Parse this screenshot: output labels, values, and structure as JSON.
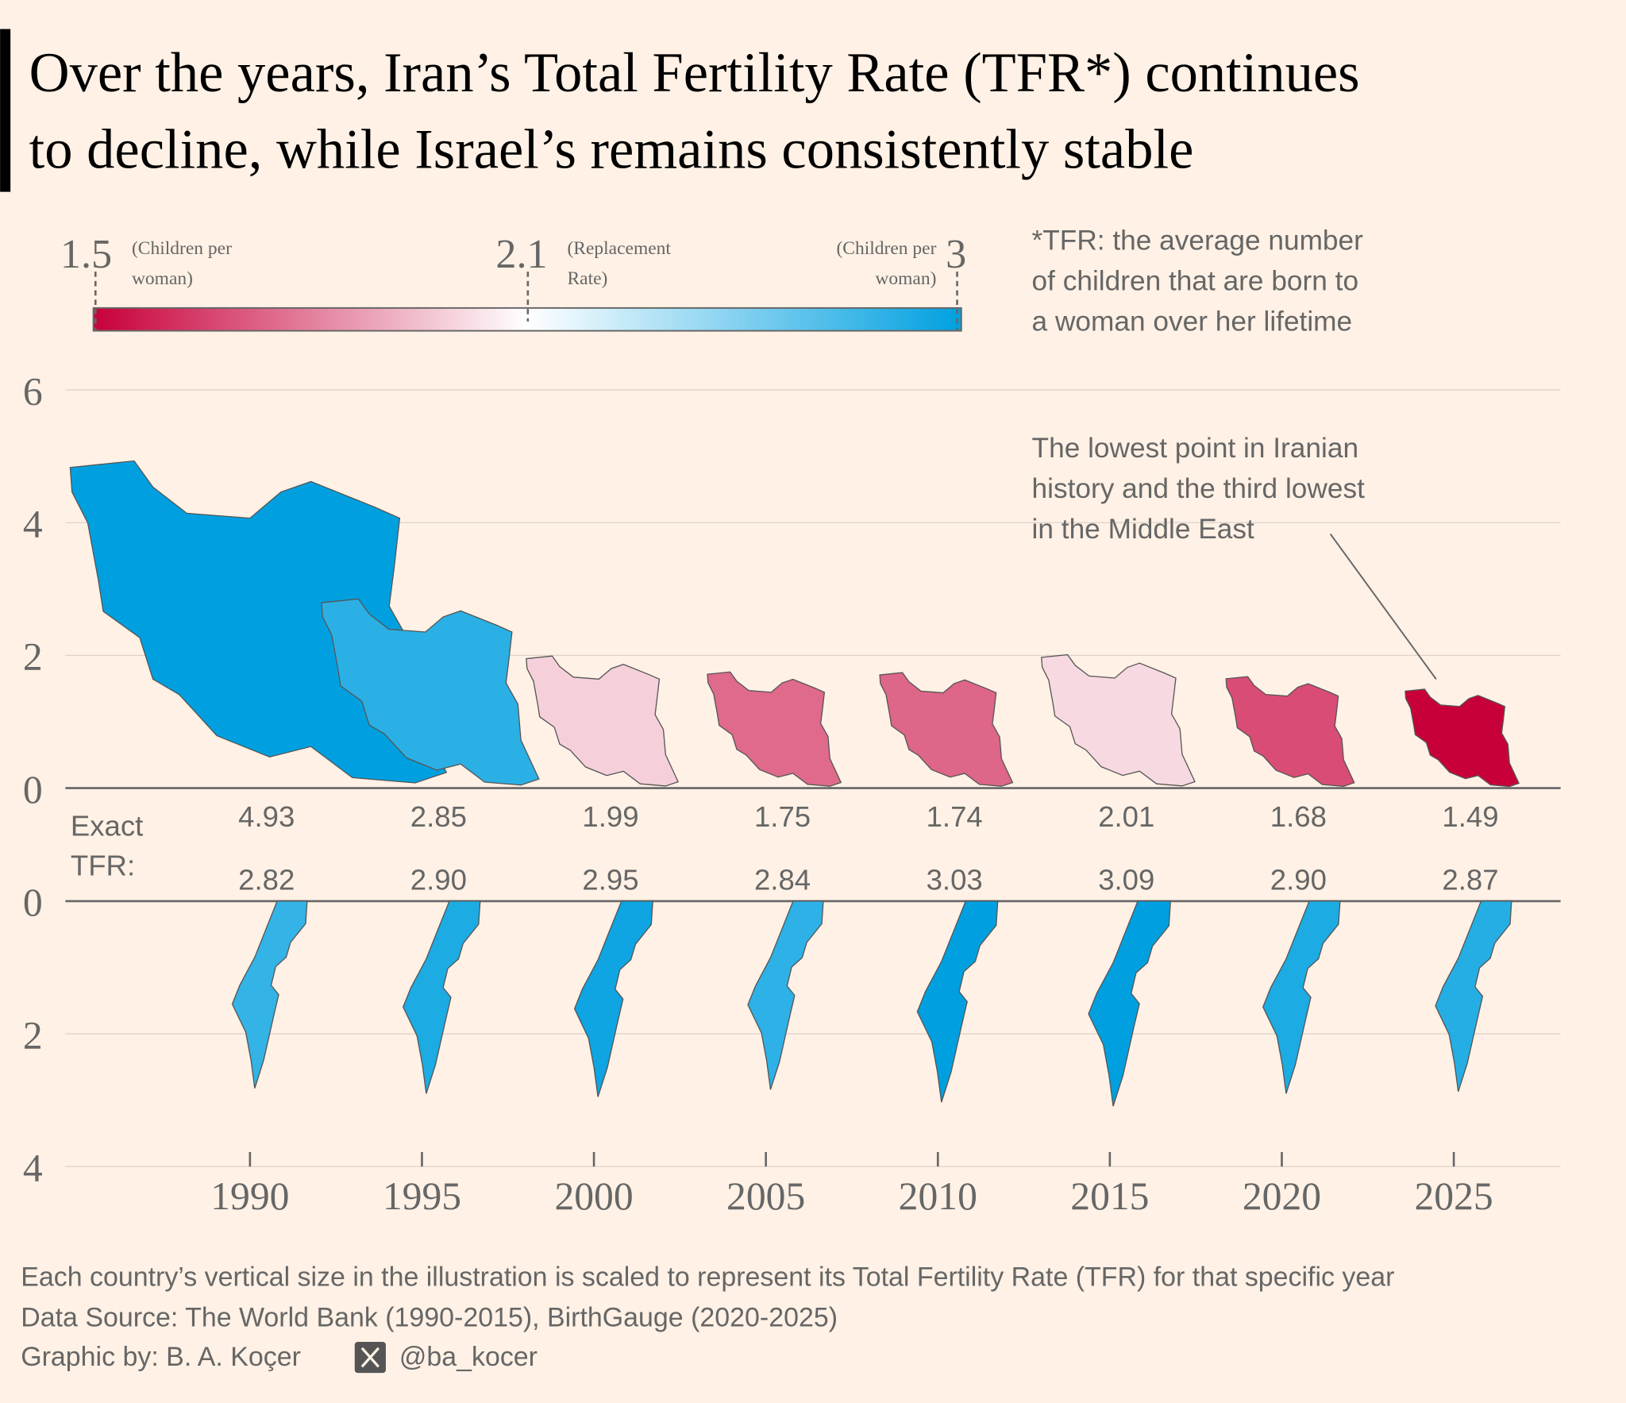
{
  "title": {
    "line1": "Over the years, Iran’s Total Fertility Rate (TFR*) continues",
    "line2": "to decline, while Israel’s remains consistently stable"
  },
  "legend": {
    "low_value": "1.5",
    "low_note_1": "(Children per",
    "low_note_2": "woman)",
    "mid_value": "2.1",
    "mid_note_1": "(Replacement",
    "mid_note_2": "Rate)",
    "high_value": "3",
    "high_note_1": "(Children per",
    "high_note_2": "woman)",
    "low_color": "#c8003a",
    "mid_color": "#ffffff",
    "high_color": "#00a0e0"
  },
  "definition": {
    "line1": "*TFR: the average number",
    "line2": "of children that are born to",
    "line3": "a woman over her lifetime"
  },
  "annotation": {
    "line1": "The lowest point in Iranian",
    "line2": "history and the third lowest",
    "line3": "in the Middle East"
  },
  "exact_label": {
    "line1": "Exact",
    "line2": "TFR:"
  },
  "footer": {
    "line1": "Each country’s vertical size in the illustration is scaled to represent its Total Fertility Rate (TFR) for that specific year",
    "line2": "Data Source: The World Bank (1990-2015), BirthGauge (2020-2025)",
    "credit": "Graphic by: B. A. Koçer",
    "handle": "@ba_kocer",
    "x_icon": "x-logo-icon"
  },
  "chart_data": {
    "type": "pictogram-bar",
    "categories": [
      "1990",
      "1995",
      "2000",
      "2005",
      "2010",
      "2015",
      "2020",
      "2025"
    ],
    "series": [
      {
        "name": "Iran",
        "values": [
          4.93,
          2.85,
          1.99,
          1.75,
          1.74,
          2.01,
          1.68,
          1.49
        ],
        "labels": [
          "4.93",
          "2.85",
          "1.99",
          "1.75",
          "1.74",
          "2.01",
          "1.68",
          "1.49"
        ],
        "direction": "up"
      },
      {
        "name": "Israel",
        "values": [
          2.82,
          2.9,
          2.95,
          2.84,
          3.03,
          3.09,
          2.9,
          2.87
        ],
        "labels": [
          "2.82",
          "2.90",
          "2.95",
          "2.84",
          "3.03",
          "3.09",
          "2.90",
          "2.87"
        ],
        "direction": "down"
      }
    ],
    "upper_axis": {
      "ticks": [
        "0",
        "2",
        "4",
        "6"
      ],
      "ylim": [
        0,
        6
      ]
    },
    "lower_axis": {
      "ticks": [
        "0",
        "2",
        "4"
      ],
      "ylim": [
        0,
        4
      ],
      "inverted": true
    },
    "color_scale": {
      "domain": [
        1.5,
        2.1,
        3
      ],
      "colors": [
        "#c8003a",
        "#ffffff",
        "#00a0e0"
      ]
    },
    "grid": true
  }
}
